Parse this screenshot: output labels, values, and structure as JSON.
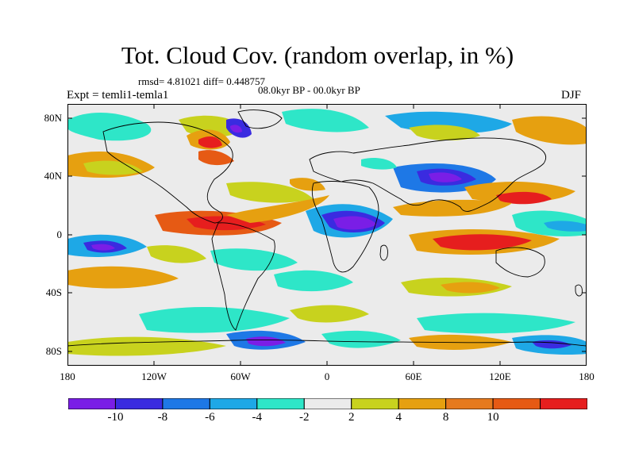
{
  "header": {
    "title": "Tot. Cloud Cov. (random overlap, in %)",
    "stats": "rmsd= 4.81021 diff= 0.448757",
    "period": "08.0kyr BP - 00.0kyr BP",
    "experiment": "Expt = temli1-temla1",
    "season": "DJF"
  },
  "axes": {
    "lat_ticks": [
      "80N",
      "40N",
      "0",
      "40S",
      "80S"
    ],
    "lon_ticks": [
      "180",
      "120W",
      "60W",
      "0",
      "60E",
      "120E",
      "180"
    ]
  },
  "colorbar": {
    "labels": [
      "-10",
      "-8",
      "-6",
      "-4",
      "-2",
      "2",
      "4",
      "8",
      "10"
    ],
    "colors": [
      "#7a1ee6",
      "#3a2be0",
      "#1e78e6",
      "#1ea8e6",
      "#2ee6c8",
      "#ebebeb",
      "#c8d21e",
      "#e6a010",
      "#e67a1e",
      "#e65a14",
      "#e61e1e"
    ]
  },
  "map_colors": {
    "neutral": "#ebebeb",
    "strong_negative": "#7a1ee6",
    "negative": "#3a2be0",
    "moderate_negative": "#1e78e6",
    "weak_negative": "#1ea8e6",
    "slight_negative": "#2ee6c8",
    "slight_positive": "#c8d21e",
    "positive": "#e6a010",
    "strong_positive": "#e61e1e"
  }
}
